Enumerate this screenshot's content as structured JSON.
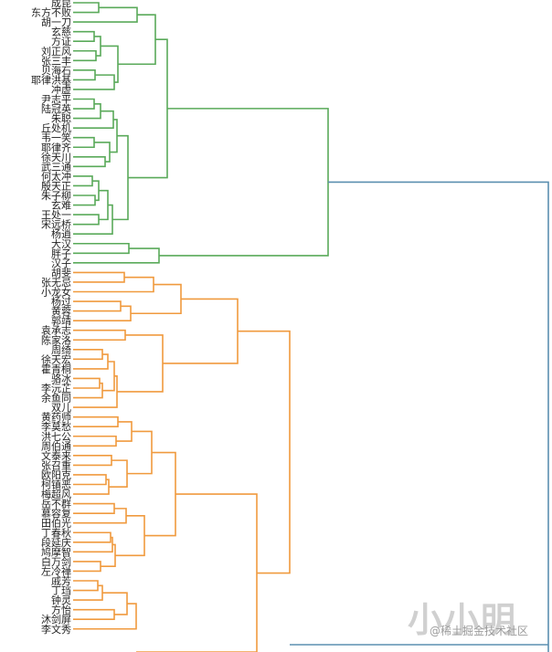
{
  "chart_data": {
    "type": "dendrogram",
    "orientation": "right",
    "title": "",
    "colors": {
      "cluster_green": "#5aaa5a",
      "cluster_orange": "#f09a3e",
      "root": "#5b8fb0"
    },
    "leaves": [
      "成昆",
      "东方不败",
      "胡一刀",
      "玄慈",
      "方证",
      "刘正风",
      "张三丰",
      "贝海石",
      "耶律洪基",
      "冲虚",
      "尹志平",
      "陆冠英",
      "朱聪",
      "丘处机",
      "韦一笑",
      "耶律齐",
      "徐天川",
      "武三通",
      "何太冲",
      "殷天正",
      "朱子柳",
      "玄难",
      "王处一",
      "宋远桥",
      "杨逍",
      "大汉",
      "胖子",
      "汉子",
      "胡斐",
      "张无忌",
      "小龙女",
      "杨过",
      "黄蓉",
      "郭靖",
      "袁承志",
      "陈家洛",
      "周绮",
      "徐天宏",
      "霍青桐",
      "骆冰",
      "李沅芷",
      "余鱼同",
      "双儿",
      "黄药师",
      "李莫愁",
      "洪七公",
      "周伯通",
      "文泰来",
      "张召重",
      "欧阳克",
      "柯镇恶",
      "梅超风",
      "岳不群",
      "慕容复",
      "田伯光",
      "丁春秋",
      "段延庆",
      "鸠摩智",
      "白万剑",
      "左冷禅",
      "戚芳",
      "丁珰",
      "钟灵",
      "方怡",
      "沐剑屏",
      "李文秀"
    ],
    "clusters": [
      {
        "name": "green",
        "leaf_range": [
          0,
          27
        ]
      },
      {
        "name": "orange",
        "leaf_range": [
          28,
          65
        ]
      }
    ]
  },
  "watermark": {
    "big": "小小明",
    "small": "@稀土掘金技术社区"
  }
}
